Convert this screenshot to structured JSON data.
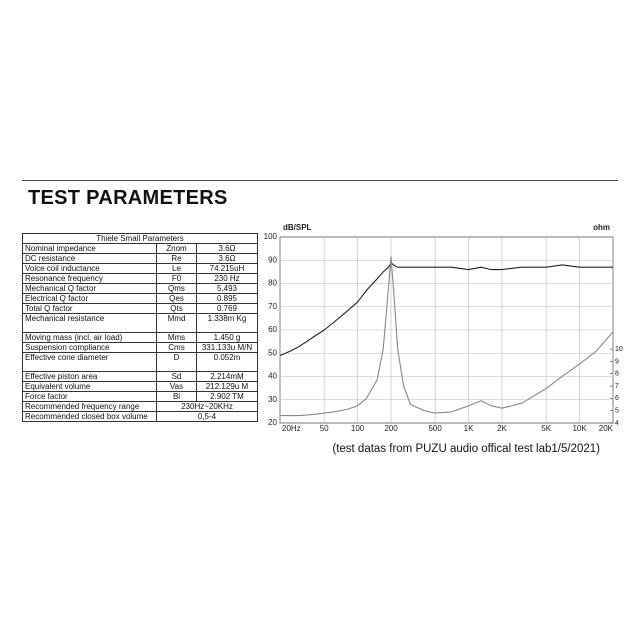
{
  "header": {
    "title": "TEST PARAMETERS"
  },
  "table": {
    "title": "Thiele Small Parameters",
    "rows": [
      [
        "Nominal impedance",
        "Znom",
        "3.6Ω"
      ],
      [
        "DC resistance",
        "Re",
        "3.6Ω"
      ],
      [
        "Voice coil inductance",
        "Le",
        "74.215uH"
      ],
      [
        "Resonance frequency",
        "F0",
        "230 Hz"
      ],
      [
        "Mechanical Q factor",
        "Qms",
        "5.493"
      ],
      [
        "Electrical Q factor",
        "Qes",
        "0.895"
      ],
      [
        "Total Q factor",
        "Qts",
        "0.769"
      ],
      [
        "Mechanical resistance",
        "Mmd",
        "1.338m Kg"
      ],
      [
        "Moving mass (incl. air load)",
        "Mms",
        "1.450 g"
      ],
      [
        "Suspension compliance",
        "Cms",
        "331.133u M/N"
      ],
      [
        "Effective cone diameter",
        "D",
        "0.052m"
      ],
      [
        "Effective piston area",
        "Sd",
        "2.214mM"
      ],
      [
        "Equivalent volume",
        "Vas",
        "212.129u M"
      ],
      [
        "Force factor",
        "Bl",
        "2.902 TM"
      ],
      [
        "Recommended frequency range",
        "230Hz~20KHz"
      ],
      [
        "Recommended closed box volume",
        "0,5-4"
      ]
    ]
  },
  "chart_data": {
    "type": "line",
    "y_label": "dB/SPL",
    "y2_label": "ohm",
    "x_scale": "log",
    "x": [
      20,
      25,
      30,
      40,
      50,
      60,
      80,
      100,
      120,
      150,
      170,
      190,
      200,
      210,
      230,
      260,
      300,
      400,
      500,
      700,
      1000,
      1300,
      1600,
      2000,
      3000,
      5000,
      7000,
      10000,
      14000,
      20000
    ],
    "xlim": [
      20,
      20000
    ],
    "xticks": [
      {
        "value": 20,
        "label": "20Hz"
      },
      50,
      100,
      200,
      500,
      {
        "value": 1000,
        "label": "1K"
      },
      {
        "value": 2000,
        "label": "2K"
      },
      {
        "value": 5000,
        "label": "5K"
      },
      {
        "value": 10000,
        "label": "10K"
      },
      {
        "value": 20000,
        "label": "20K"
      }
    ],
    "ylim": [
      20,
      100
    ],
    "yticks": [
      20,
      30,
      40,
      50,
      60,
      70,
      80,
      90,
      100
    ],
    "y2lim": [
      4,
      19.1
    ],
    "y2ticks": [
      4,
      5,
      6,
      7,
      8,
      9,
      10
    ],
    "grid": true,
    "series": [
      {
        "name": "SPL",
        "color": "#222222",
        "values": [
          49,
          51,
          53,
          57,
          60,
          63,
          68,
          72,
          77,
          82,
          85,
          87,
          89,
          88,
          87,
          87,
          87,
          87,
          87,
          87,
          86,
          87,
          86,
          86,
          87,
          87,
          88,
          87,
          87,
          87
        ]
      },
      {
        "name": "Impedance",
        "color": "#888888",
        "axis": "y2",
        "values": [
          4.6,
          4.6,
          4.6,
          4.7,
          4.8,
          4.9,
          5.1,
          5.4,
          6,
          7.5,
          10,
          15,
          17.5,
          15,
          10,
          7,
          5.5,
          5,
          4.8,
          4.9,
          5.4,
          5.8,
          5.4,
          5.2,
          5.6,
          6.8,
          7.8,
          8.8,
          9.8,
          11.4
        ]
      }
    ]
  },
  "footnote": "(test datas from PUZU audio offical test lab1/5/2021)"
}
